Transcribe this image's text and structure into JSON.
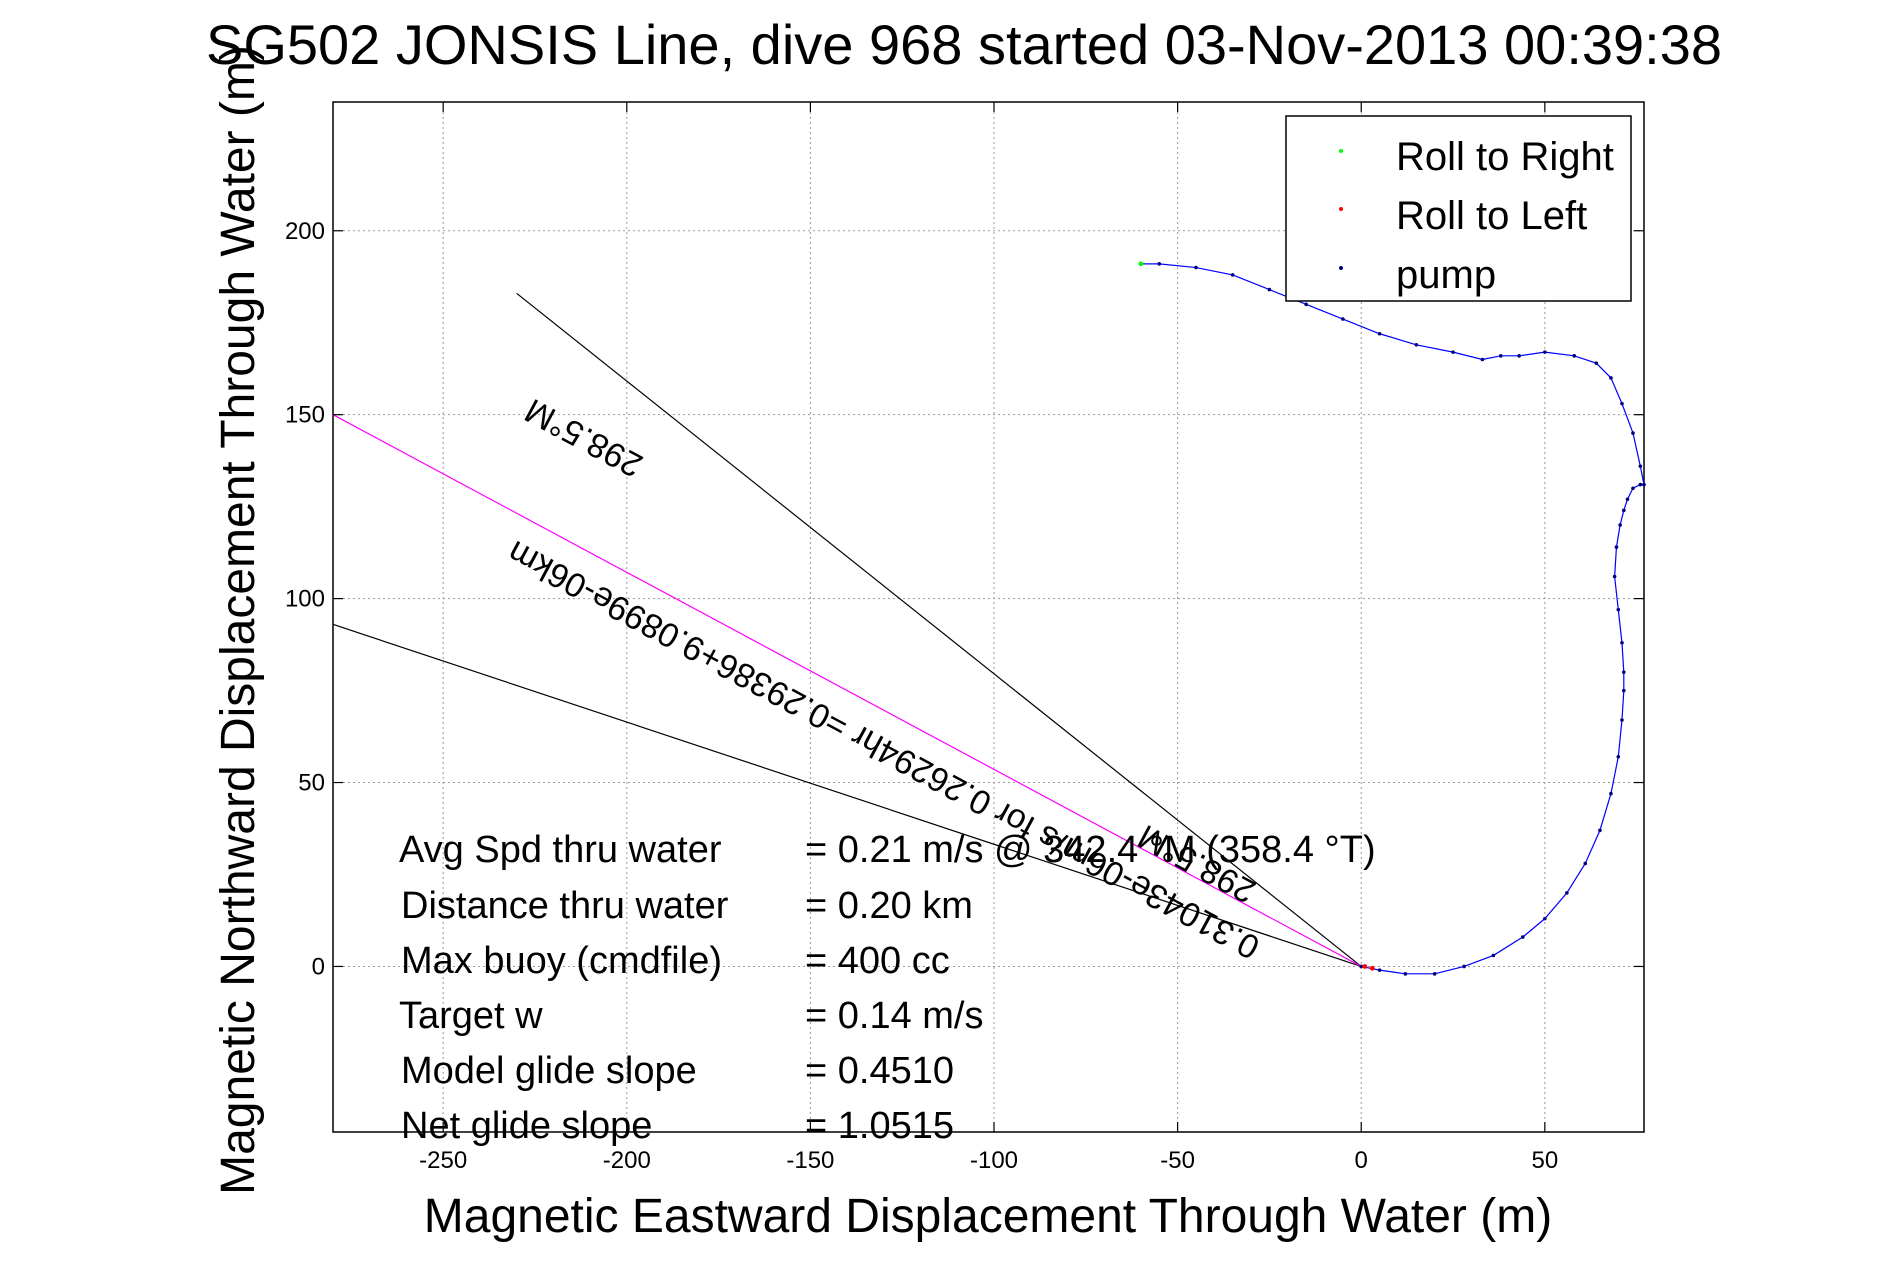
{
  "chart_data": {
    "type": "scatter",
    "title": "SG502 JONSIS Line, dive 968 started 03-Nov-2013 00:39:38",
    "xlabel": "Magnetic Eastward Displacement Through Water (m)",
    "ylabel": "Magnetic Northward Displacement Through Water (m)",
    "xlim": [
      -280,
      77
    ],
    "ylim": [
      -45,
      235
    ],
    "xticks": [
      -250,
      -200,
      -150,
      -100,
      -50,
      0,
      50
    ],
    "yticks": [
      0,
      50,
      100,
      150,
      200
    ],
    "tick_labels_x": [
      "-250",
      "-200",
      "-150",
      "-100",
      "-50",
      "0",
      "50"
    ],
    "tick_labels_y": [
      "0",
      "50",
      "100",
      "150",
      "200"
    ],
    "grid": true,
    "legend": {
      "position": "top-right",
      "entries": [
        {
          "label": "Roll to Right",
          "color": "#00ff00"
        },
        {
          "label": "Roll to Left",
          "color": "#ff0000"
        },
        {
          "label": "pump",
          "color": "#000080"
        }
      ]
    },
    "series": [
      {
        "name": "track",
        "color": "#0000ff",
        "x": [
          0,
          5,
          12,
          20,
          28,
          36,
          44,
          50,
          56,
          61,
          65,
          68,
          70,
          71,
          71.5,
          71.5,
          71,
          70,
          69,
          69.5,
          70.5,
          71.5,
          72.5,
          74,
          76,
          77,
          76,
          74,
          71,
          68,
          64,
          58,
          50,
          43,
          38,
          33,
          25,
          15,
          5,
          -5,
          -15,
          -25,
          -35,
          -45,
          -55,
          -60
        ],
        "y": [
          0,
          -1,
          -2,
          -2,
          0,
          3,
          8,
          13,
          20,
          28,
          37,
          47,
          57,
          67,
          75,
          80,
          88,
          97,
          106,
          114,
          120,
          124,
          127,
          130,
          131,
          131,
          136,
          145,
          153,
          160,
          164,
          166,
          167,
          166,
          166,
          165,
          167,
          169,
          172,
          176,
          180,
          184,
          188,
          190,
          191,
          191
        ]
      },
      {
        "name": "Roll to Right",
        "color": "#00ff00",
        "x": [
          -60
        ],
        "y": [
          191
        ]
      },
      {
        "name": "Roll to Left",
        "color": "#ff0000",
        "x": [
          1,
          3
        ],
        "y": [
          0,
          -0.5
        ]
      }
    ],
    "lines": [
      {
        "color": "#000000",
        "x": [
          0,
          -230
        ],
        "y": [
          0,
          183
        ]
      },
      {
        "color": "#000000",
        "x": [
          0,
          -280
        ],
        "y": [
          0,
          93
        ]
      },
      {
        "color": "#ff00ff",
        "x": [
          0,
          -280
        ],
        "y": [
          0,
          150
        ]
      }
    ],
    "annotations": [
      {
        "text": "0.31043e-06m/s for 0.26294hr =0.29386+9.0899e-06km",
        "color": "#000000"
      },
      {
        "text": "298.5°M",
        "color": "#000000"
      },
      {
        "text": "298.5°M",
        "color": "#000000"
      }
    ],
    "stats": [
      {
        "label": "Avg Spd thru water",
        "value": "=  0.21 m/s @ 342.4 °M (358.4 °T)"
      },
      {
        "label": "Distance thru water",
        "value": "=  0.20 km"
      },
      {
        "label": "Max buoy (cmdfile)",
        "value": "= 400 cc"
      },
      {
        "label": "Target w",
        "value": "= 0.14 m/s"
      },
      {
        "label": "Model glide slope",
        "value": "= 0.4510"
      },
      {
        "label": "Net glide slope",
        "value": "= 1.0515"
      }
    ]
  }
}
